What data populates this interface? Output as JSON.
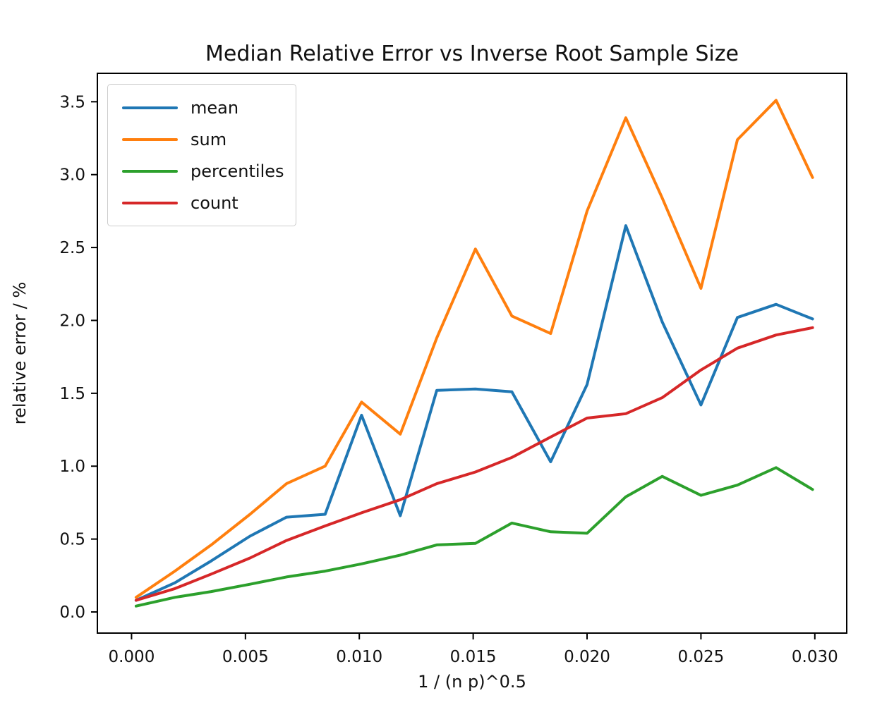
{
  "chart_data": {
    "type": "line",
    "title": "Median Relative Error vs Inverse Root Sample Size",
    "xlabel": "1 / (n p)^0.5",
    "ylabel": "relative error / %",
    "grid": false,
    "legend_position": "upper left",
    "xlim": [
      -0.0015,
      0.0314
    ],
    "ylim": [
      -0.145,
      3.695
    ],
    "xticks": {
      "values": [
        0.0,
        0.005,
        0.01,
        0.015,
        0.02,
        0.025,
        0.03
      ],
      "labels": [
        "0.000",
        "0.005",
        "0.010",
        "0.015",
        "0.020",
        "0.025",
        "0.030"
      ]
    },
    "yticks": {
      "values": [
        0.0,
        0.5,
        1.0,
        1.5,
        2.0,
        2.5,
        3.0,
        3.5
      ],
      "labels": [
        "0.0",
        "0.5",
        "1.0",
        "1.5",
        "2.0",
        "2.5",
        "3.0",
        "3.5"
      ]
    },
    "x": [
      0.0002,
      0.0019,
      0.0035,
      0.0052,
      0.0068,
      0.0085,
      0.0101,
      0.0118,
      0.0134,
      0.0151,
      0.0167,
      0.0184,
      0.02,
      0.0217,
      0.0233,
      0.025,
      0.0266,
      0.0283,
      0.0299
    ],
    "series": [
      {
        "name": "mean",
        "color": "#1f77b4",
        "values": [
          0.08,
          0.2,
          0.35,
          0.52,
          0.65,
          0.67,
          1.35,
          0.66,
          1.52,
          1.53,
          1.51,
          1.03,
          1.56,
          2.65,
          1.99,
          1.42,
          2.02,
          2.11,
          2.01
        ]
      },
      {
        "name": "sum",
        "color": "#ff7f0e",
        "values": [
          0.1,
          0.28,
          0.46,
          0.67,
          0.88,
          1.0,
          1.44,
          1.22,
          1.88,
          2.49,
          2.03,
          1.91,
          2.75,
          3.39,
          2.84,
          2.22,
          3.24,
          3.51,
          2.98
        ]
      },
      {
        "name": "percentiles",
        "color": "#2ca02c",
        "values": [
          0.04,
          0.1,
          0.14,
          0.19,
          0.24,
          0.28,
          0.33,
          0.39,
          0.46,
          0.47,
          0.61,
          0.55,
          0.54,
          0.79,
          0.93,
          0.8,
          0.87,
          0.99,
          0.84
        ]
      },
      {
        "name": "count",
        "color": "#d62728",
        "values": [
          0.08,
          0.16,
          0.26,
          0.37,
          0.49,
          0.59,
          0.68,
          0.77,
          0.88,
          0.96,
          1.06,
          1.2,
          1.33,
          1.36,
          1.47,
          1.66,
          1.81,
          1.9,
          1.95
        ]
      }
    ]
  }
}
